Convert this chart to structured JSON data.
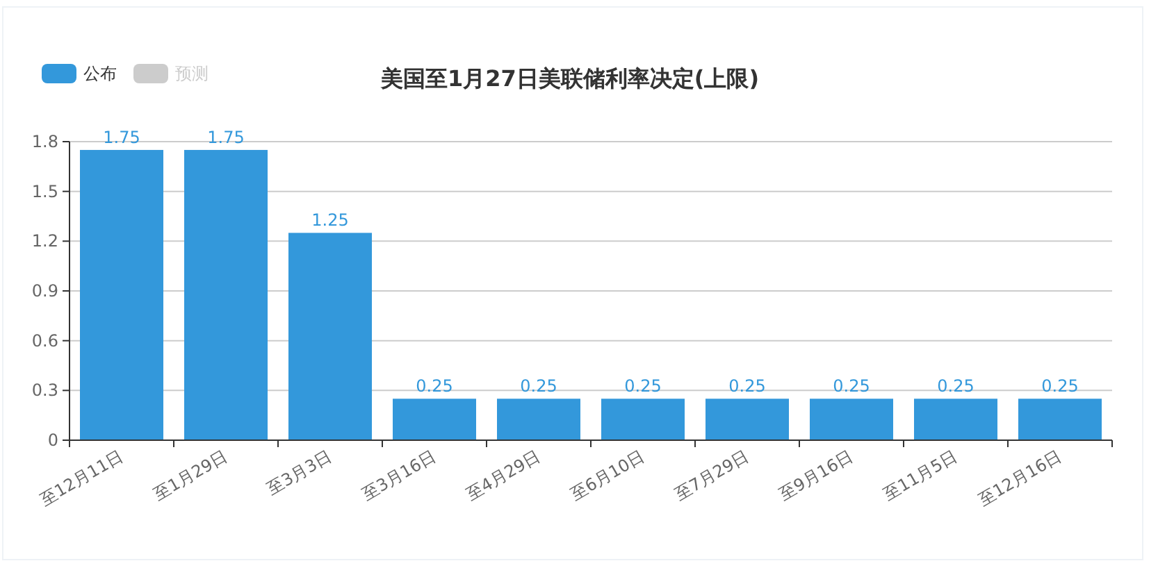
{
  "chart_data": {
    "type": "bar",
    "title": "美国至1月27日美联储利率决定(上限)",
    "categories": [
      "至12月11日",
      "至1月29日",
      "至3月3日",
      "至3月16日",
      "至4月29日",
      "至6月10日",
      "至7月29日",
      "至9月16日",
      "至11月5日",
      "至12月16日"
    ],
    "series": [
      {
        "name": "公布",
        "color": "#3398db",
        "values": [
          1.75,
          1.75,
          1.25,
          0.25,
          0.25,
          0.25,
          0.25,
          0.25,
          0.25,
          0.25
        ]
      },
      {
        "name": "预测",
        "color": "#cccccc",
        "values": [
          null,
          null,
          null,
          null,
          null,
          null,
          null,
          null,
          null,
          null
        ]
      }
    ],
    "ylim": [
      0,
      1.8
    ],
    "yticks": [
      0,
      0.3,
      0.6,
      0.9,
      1.2,
      1.5,
      1.8
    ],
    "grid": "y",
    "legend": "top left",
    "data_labels": true
  }
}
